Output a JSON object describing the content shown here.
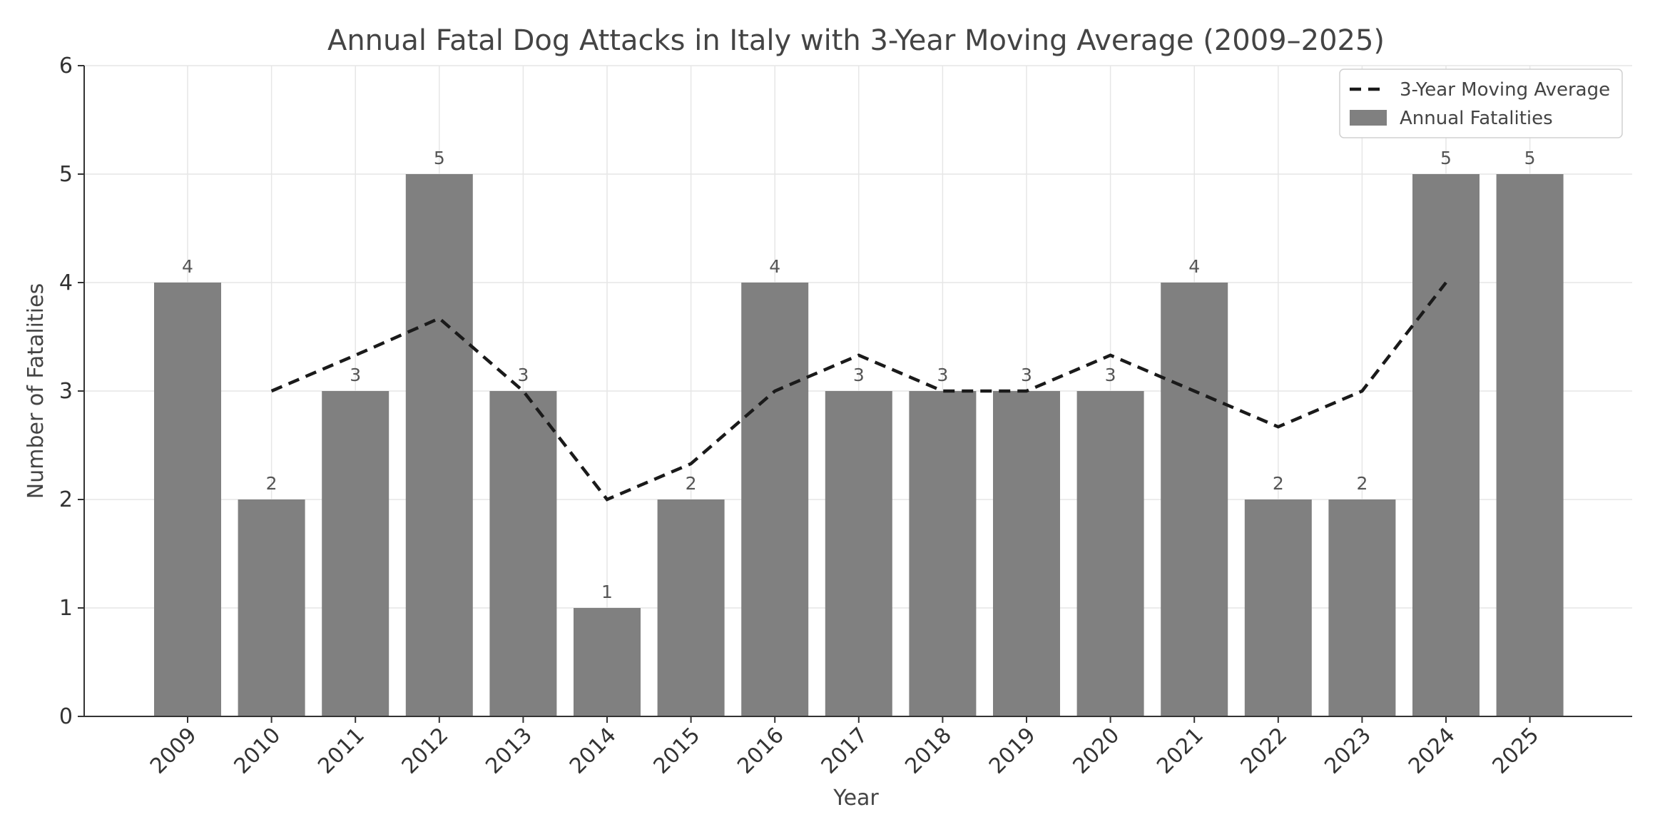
{
  "chart_data": {
    "type": "bar",
    "title": "Annual Fatal Dog Attacks in Italy with 3-Year Moving Average (2009–2025)",
    "xlabel": "Year",
    "ylabel": "Number of Fatalities",
    "ylim": [
      0,
      6
    ],
    "yticks": [
      "0",
      "1",
      "2",
      "3",
      "4",
      "5",
      "6"
    ],
    "grid": true,
    "legend_position": "top-right",
    "categories": [
      "2009",
      "2010",
      "2011",
      "2012",
      "2013",
      "2014",
      "2015",
      "2016",
      "2017",
      "2018",
      "2019",
      "2020",
      "2021",
      "2022",
      "2023",
      "2024",
      "2025"
    ],
    "series": [
      {
        "name": "Annual Fatalities",
        "type": "bar",
        "color": "#808080",
        "values": [
          4,
          2,
          3,
          5,
          3,
          1,
          2,
          4,
          3,
          3,
          3,
          3,
          4,
          2,
          2,
          5,
          5
        ]
      },
      {
        "name": "3-Year Moving Average",
        "type": "line",
        "style": "dashed",
        "color": "#1a1a1a",
        "values": [
          null,
          3.0,
          3.33,
          3.67,
          3.0,
          2.0,
          2.33,
          3.0,
          3.33,
          3.0,
          3.0,
          3.33,
          3.0,
          2.67,
          3.0,
          4.0,
          null
        ]
      }
    ],
    "data_labels": [
      "4",
      "2",
      "3",
      "5",
      "3",
      "1",
      "2",
      "4",
      "3",
      "3",
      "3",
      "3",
      "4",
      "2",
      "2",
      "5",
      "5"
    ],
    "legend": [
      "3-Year Moving Average",
      "Annual Fatalities"
    ]
  }
}
